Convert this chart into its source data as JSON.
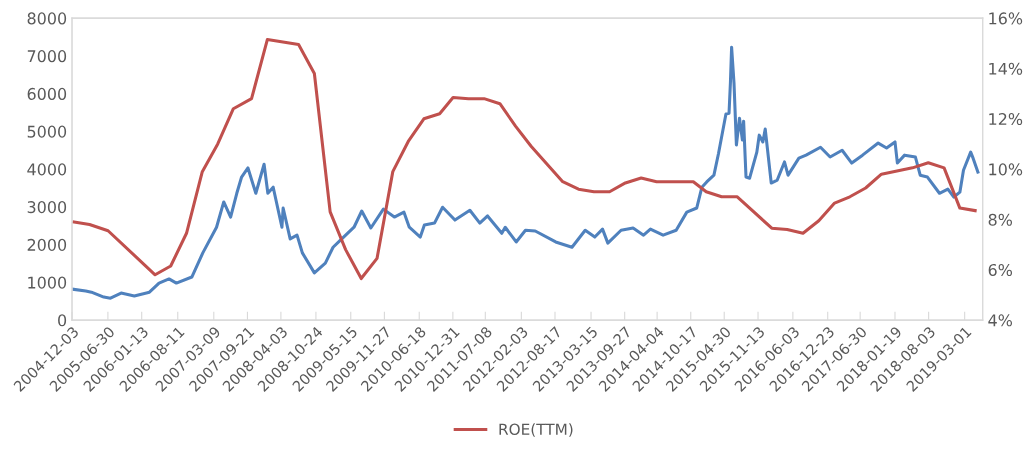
{
  "chart_data": {
    "type": "line",
    "legend": "bottom",
    "grid": false,
    "xlim": [
      "2004-12-03",
      "2019-06-14"
    ],
    "xticks": [
      "2004-12-03",
      "2005-06-30",
      "2006-01-13",
      "2006-08-11",
      "2007-03-09",
      "2007-09-21",
      "2008-04-03",
      "2008-10-24",
      "2009-05-15",
      "2009-11-27",
      "2010-06-18",
      "2010-12-31",
      "2011-07-08",
      "2012-02-03",
      "2012-08-17",
      "2013-03-15",
      "2013-09-27",
      "2014-04-04",
      "2014-10-17",
      "2015-04-30",
      "2015-11-13",
      "2016-06-03",
      "2016-12-23",
      "2017-06-30",
      "2018-01-19",
      "2018-08-03",
      "2019-03-01"
    ],
    "ylim": [
      0,
      8000
    ],
    "yticks": [
      0,
      1000,
      2000,
      3000,
      4000,
      5000,
      6000,
      7000,
      8000
    ],
    "y2lim": [
      4,
      16
    ],
    "y2ticks": [
      {
        "value": 4,
        "label": "4%"
      },
      {
        "value": 6,
        "label": "6%"
      },
      {
        "value": 8,
        "label": "8%"
      },
      {
        "value": 10,
        "label": "10%"
      },
      {
        "value": 12,
        "label": "12%"
      },
      {
        "value": 14,
        "label": "14%"
      },
      {
        "value": 16,
        "label": "16%"
      }
    ],
    "series": [
      {
        "color": "#4f81bd",
        "x": [
          "2004-12-03",
          "2005-02-21",
          "2005-03-26",
          "2005-06-06",
          "2005-07-15",
          "2005-09-15",
          "2005-12-01",
          "2006-02-27",
          "2006-04-24",
          "2006-06-21",
          "2006-08-03",
          "2006-11-01",
          "2007-01-04",
          "2007-03-25",
          "2007-05-06",
          "2007-06-15",
          "2007-07-21",
          "2007-08-18",
          "2007-09-24",
          "2007-11-09",
          "2007-12-27",
          "2008-01-18",
          "2008-02-18",
          "2008-04-09",
          "2008-04-16",
          "2008-05-27",
          "2008-07-06",
          "2008-08-06",
          "2008-10-15",
          "2008-12-18",
          "2009-02-01",
          "2009-03-16",
          "2009-06-03",
          "2009-07-18",
          "2009-09-09",
          "2009-11-21",
          "2010-01-24",
          "2010-03-21",
          "2010-04-21",
          "2010-06-24",
          "2010-07-18",
          "2010-09-15",
          "2010-11-01",
          "2011-01-12",
          "2011-04-09",
          "2011-06-06",
          "2011-07-21",
          "2011-10-12",
          "2011-11-01",
          "2012-01-04",
          "2012-02-27",
          "2012-04-24",
          "2012-08-21",
          "2012-11-24",
          "2013-02-09",
          "2013-04-06",
          "2013-05-21",
          "2013-06-21",
          "2013-09-06",
          "2013-11-15",
          "2014-01-15",
          "2014-02-24",
          "2014-05-09",
          "2014-07-24",
          "2014-09-24",
          "2014-11-21",
          "2014-12-21",
          "2015-01-18",
          "2015-03-01",
          "2015-03-28",
          "2015-05-10",
          "2015-05-28",
          "2015-06-05",
          "2015-06-12",
          "2015-06-26",
          "2015-07-10",
          "2015-07-28",
          "2015-08-14",
          "2015-08-21",
          "2015-09-04",
          "2015-09-25",
          "2015-11-06",
          "2015-11-20",
          "2015-12-11",
          "2015-12-25",
          "2016-01-29",
          "2016-03-04",
          "2016-04-15",
          "2016-05-06",
          "2016-07-08",
          "2016-08-19",
          "2016-11-11",
          "2017-01-06",
          "2017-03-17",
          "2017-05-12",
          "2017-07-14",
          "2017-10-13",
          "2017-12-01",
          "2018-01-19",
          "2018-02-02",
          "2018-03-16",
          "2018-05-18",
          "2018-06-15",
          "2018-07-27",
          "2018-10-05",
          "2018-11-23",
          "2018-12-28",
          "2019-02-01",
          "2019-02-22",
          "2019-04-05",
          "2019-04-19",
          "2019-05-17"
        ],
        "values": [
          820,
          770,
          740,
          610,
          580,
          715,
          640,
          740,
          980,
          1090,
          980,
          1140,
          1780,
          2460,
          3130,
          2730,
          3360,
          3790,
          4030,
          3360,
          4130,
          3360,
          3520,
          2460,
          2970,
          2150,
          2250,
          1780,
          1250,
          1510,
          1930,
          2120,
          2460,
          2890,
          2440,
          2940,
          2730,
          2860,
          2460,
          2200,
          2520,
          2570,
          2990,
          2650,
          2910,
          2570,
          2760,
          2300,
          2460,
          2070,
          2380,
          2360,
          2070,
          1930,
          2380,
          2200,
          2410,
          2040,
          2380,
          2440,
          2250,
          2410,
          2250,
          2380,
          2860,
          2970,
          3520,
          3660,
          3840,
          4420,
          5460,
          5480,
          6280,
          7230,
          6280,
          4640,
          5350,
          4770,
          5270,
          3790,
          3760,
          4450,
          4900,
          4720,
          5060,
          3630,
          3710,
          4190,
          3840,
          4290,
          4370,
          4580,
          4320,
          4500,
          4160,
          4370,
          4690,
          4560,
          4720,
          4160,
          4370,
          4320,
          3840,
          3790,
          3360,
          3470,
          3260,
          3390,
          3970,
          4450,
          4290,
          3920
        ]
      },
      {
        "name": "ROE(TTM)",
        "color": "#c0504d",
        "axis": "y2",
        "x": [
          "2004-12-15",
          "2005-03-15",
          "2005-07-01",
          "2006-04-01",
          "2006-07-01",
          "2006-10-01",
          "2007-01-01",
          "2007-04-01",
          "2007-07-01",
          "2007-10-15",
          "2008-01-15",
          "2008-07-15",
          "2008-10-15",
          "2009-01-15",
          "2009-04-15",
          "2009-07-15",
          "2009-10-15",
          "2010-01-15",
          "2010-04-15",
          "2010-07-15",
          "2010-10-15",
          "2011-01-01",
          "2011-04-01",
          "2011-07-01",
          "2011-10-01",
          "2012-01-01",
          "2012-04-01",
          "2012-10-01",
          "2013-01-01",
          "2013-04-01",
          "2013-07-01",
          "2013-10-01",
          "2014-01-01",
          "2014-04-01",
          "2014-07-01",
          "2014-11-01",
          "2015-01-15",
          "2015-04-15",
          "2015-07-15",
          "2016-02-01",
          "2016-05-01",
          "2016-08-01",
          "2016-11-01",
          "2017-02-01",
          "2017-05-01",
          "2017-08-01",
          "2017-11-01",
          "2018-05-01",
          "2018-08-01",
          "2018-11-01",
          "2019-02-01",
          "2019-05-01"
        ],
        "values": [
          7.9,
          7.8,
          7.55,
          5.8,
          6.15,
          7.45,
          9.9,
          11.0,
          12.4,
          12.8,
          15.15,
          14.95,
          13.8,
          8.3,
          6.8,
          5.65,
          6.45,
          9.9,
          11.1,
          12.0,
          12.2,
          12.85,
          12.8,
          12.8,
          12.6,
          11.7,
          10.9,
          9.5,
          9.2,
          9.1,
          9.1,
          9.45,
          9.65,
          9.5,
          9.5,
          9.5,
          9.1,
          8.9,
          8.9,
          7.65,
          7.6,
          7.45,
          7.95,
          8.65,
          8.9,
          9.25,
          9.8,
          10.05,
          10.25,
          10.05,
          8.45,
          8.35
        ]
      }
    ]
  }
}
